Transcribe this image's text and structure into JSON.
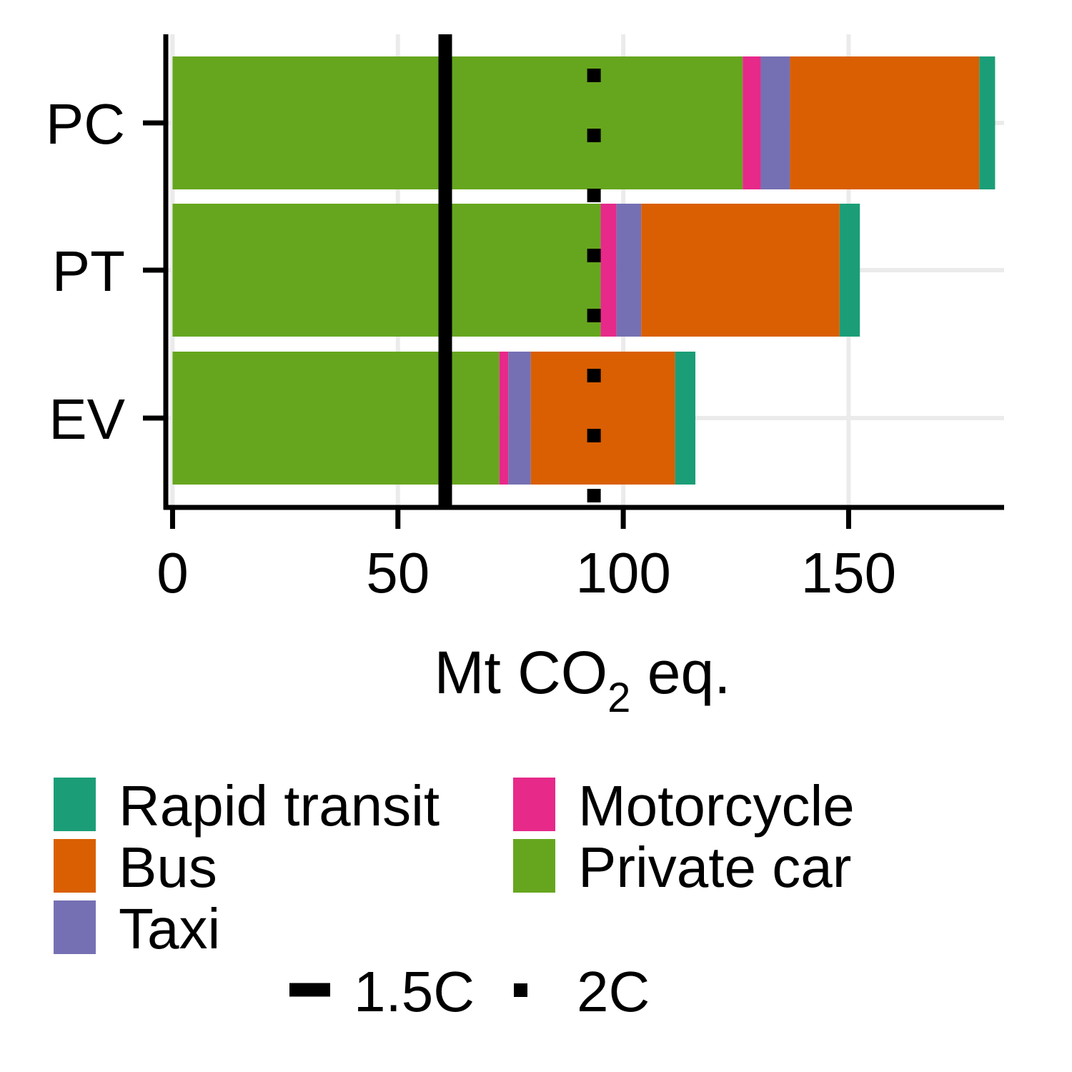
{
  "chart_data": {
    "type": "bar",
    "orientation": "horizontal",
    "stacked": true,
    "categories": [
      "PC",
      "PT",
      "EV"
    ],
    "series": [
      {
        "name": "Private car",
        "color": "#66a61e",
        "values": [
          126.5,
          95.0,
          72.5
        ]
      },
      {
        "name": "Motorcycle",
        "color": "#e7298a",
        "values": [
          4.0,
          3.5,
          2.0
        ]
      },
      {
        "name": "Taxi",
        "color": "#7570b3",
        "values": [
          6.5,
          5.5,
          5.0
        ]
      },
      {
        "name": "Bus",
        "color": "#d95f02",
        "values": [
          42.0,
          44.0,
          32.0
        ]
      },
      {
        "name": "Rapid transit",
        "color": "#1b9e77",
        "values": [
          3.5,
          4.5,
          4.5
        ]
      }
    ],
    "reference_lines": [
      {
        "name": "1.5C",
        "value": 60.5,
        "style": "solid"
      },
      {
        "name": "2C",
        "value": 93.5,
        "style": "dotted"
      }
    ],
    "xlabel": {
      "main": "Mt CO",
      "subscript": "2",
      "suffix": " eq."
    },
    "ylabel": "",
    "xlim": [
      -1.5,
      184.5
    ],
    "xticks": [
      0,
      50,
      100,
      150
    ],
    "grid": true,
    "legend_position": "bottom",
    "legend_order": [
      "Rapid transit",
      "Bus",
      "Taxi",
      "Motorcycle",
      "Private car"
    ]
  }
}
